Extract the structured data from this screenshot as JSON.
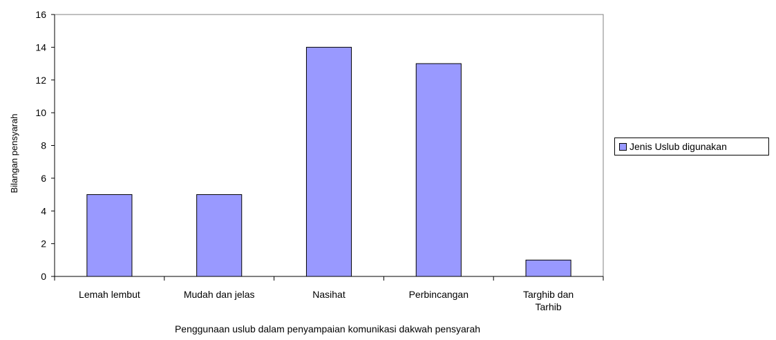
{
  "chart_data": {
    "type": "bar",
    "categories": [
      [
        "Lemah lembut"
      ],
      [
        "Mudah dan jelas"
      ],
      [
        "Nasihat"
      ],
      [
        "Perbincangan"
      ],
      [
        "Targhib dan",
        "Tarhib"
      ]
    ],
    "series": [
      {
        "name": "Jenis Uslub digunakan",
        "values": [
          5,
          5,
          14,
          13,
          1
        ],
        "color": "#9999ff"
      }
    ],
    "xlabel": "Penggunaan uslub dalam penyampaian komunikasi dakwah pensyarah",
    "ylabel": "Bilangan pensyarah",
    "ylim": [
      0,
      16
    ],
    "yticks": [
      0,
      2,
      4,
      6,
      8,
      10,
      12,
      14,
      16
    ],
    "grid": false,
    "legend_position": "right"
  }
}
